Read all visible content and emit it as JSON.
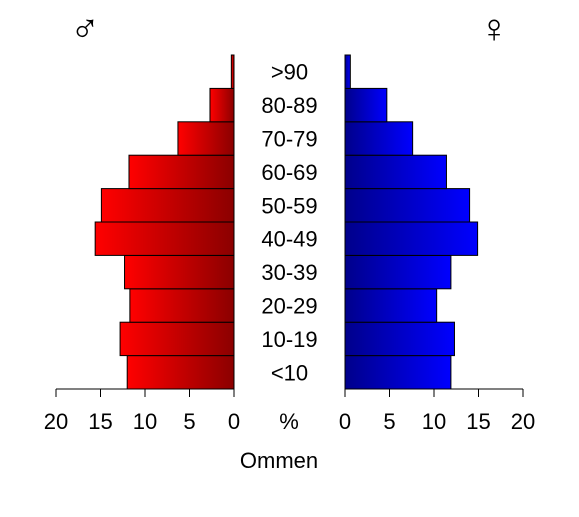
{
  "chart_data": {
    "type": "bar",
    "orientation": "horizontal",
    "layout": "population-pyramid",
    "categories": [
      "<10",
      "10-19",
      "20-29",
      "30-39",
      "40-49",
      "50-59",
      "60-69",
      "70-79",
      "80-89",
      ">90"
    ],
    "series": [
      {
        "name": "♂",
        "values": [
          12.0,
          12.8,
          11.7,
          12.3,
          15.6,
          14.9,
          11.8,
          6.3,
          2.7,
          0.3
        ]
      },
      {
        "name": "♀",
        "values": [
          11.9,
          12.3,
          10.3,
          11.9,
          14.9,
          14.0,
          11.4,
          7.6,
          4.7,
          0.6
        ]
      }
    ],
    "xlim": [
      0,
      20
    ],
    "xticks": [
      0,
      5,
      10,
      15,
      20
    ],
    "center_axis_label": "%",
    "xlabel": "Ommen",
    "grid": false,
    "colors": {
      "male": "#ff0000",
      "male_dark": "#8b0000",
      "female": "#0000ff",
      "female_dark": "#00008b"
    }
  }
}
